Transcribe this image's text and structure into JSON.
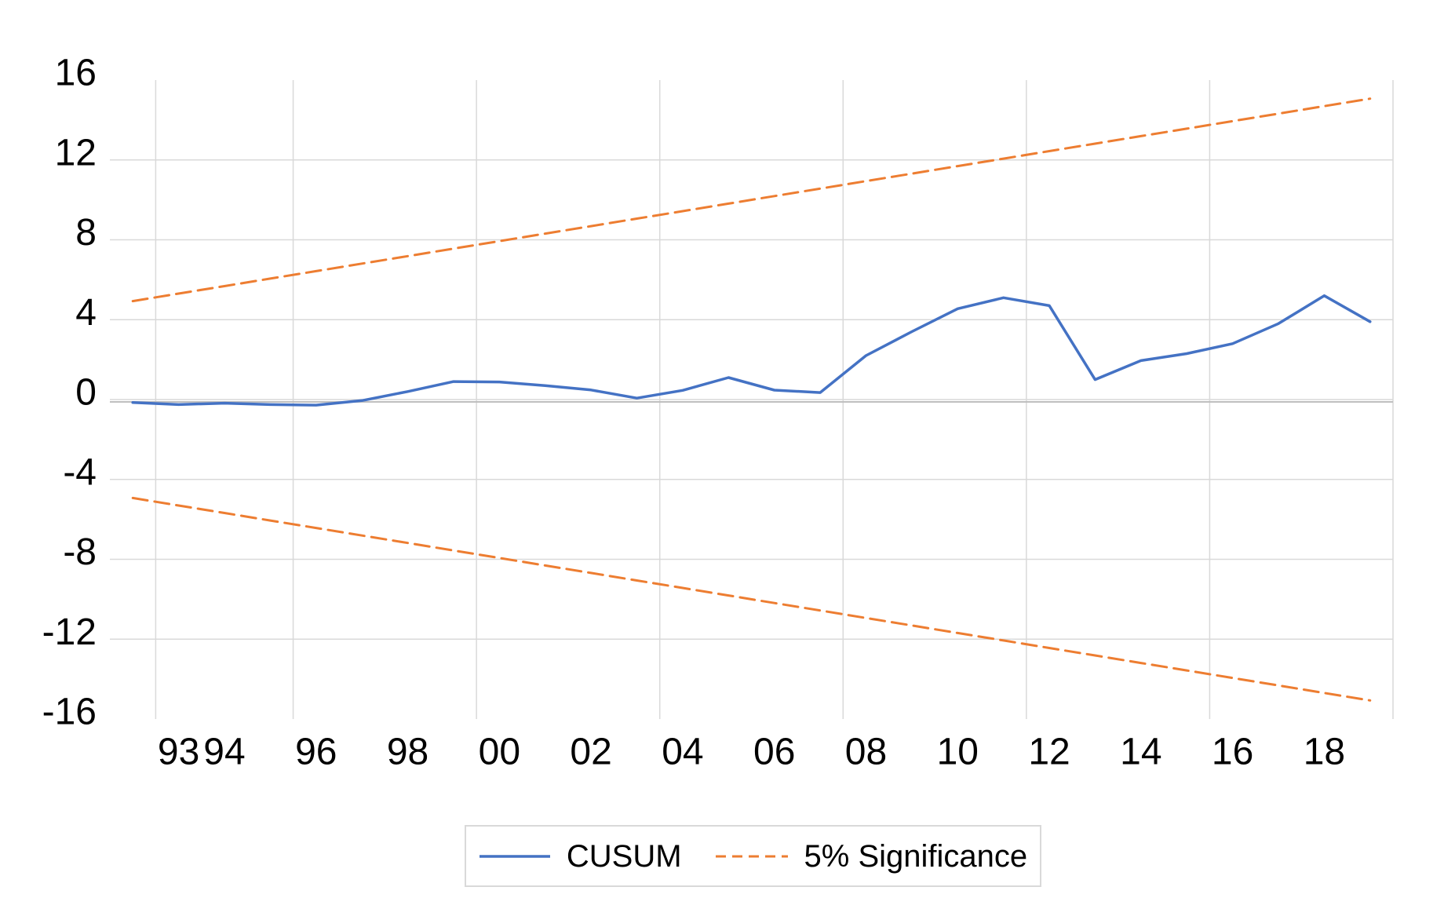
{
  "chart_data": {
    "type": "line",
    "title": "",
    "xlabel": "",
    "ylabel": "",
    "ylim": [
      -16,
      16
    ],
    "grid": true,
    "legend_position": "bottom",
    "x": [
      1992,
      1993,
      1994,
      1995,
      1996,
      1997,
      1998,
      1999,
      2000,
      2001,
      2002,
      2003,
      2004,
      2005,
      2006,
      2007,
      2008,
      2009,
      2010,
      2011,
      2012,
      2013,
      2014,
      2015,
      2016,
      2017,
      2018,
      2019
    ],
    "series": [
      {
        "name": "CUSUM",
        "color": "#4472C4",
        "style": "solid",
        "values": [
          -0.15,
          -0.25,
          -0.18,
          -0.25,
          -0.28,
          -0.05,
          0.4,
          0.9,
          0.88,
          0.7,
          0.48,
          0.07,
          0.46,
          1.1,
          0.47,
          0.35,
          2.2,
          3.4,
          4.55,
          5.1,
          4.7,
          1.0,
          1.95,
          2.3,
          2.8,
          3.8,
          5.2,
          3.9
        ]
      },
      {
        "name": "5% Significance (upper bound)",
        "color": "#ED7D31",
        "style": "dashed",
        "linear": {
          "start": 4.93,
          "end": 15.07
        }
      },
      {
        "name": "5% Significance (lower bound)",
        "color": "#ED7D31",
        "style": "dashed",
        "linear": {
          "start": -4.93,
          "end": -15.07
        }
      }
    ],
    "y_axis": {
      "ticks": [
        16,
        12,
        8,
        4,
        0,
        -4,
        -8,
        -12,
        -16
      ],
      "gridline_ticks": [
        12,
        8,
        4,
        0,
        -4,
        -8,
        -12
      ]
    },
    "x_axis": {
      "tick_labels": [
        {
          "year": 1993,
          "label": "93"
        },
        {
          "year": 1994,
          "label": "94"
        },
        {
          "year": 1996,
          "label": "96"
        },
        {
          "year": 1998,
          "label": "98"
        },
        {
          "year": 2000,
          "label": "00"
        },
        {
          "year": 2002,
          "label": "02"
        },
        {
          "year": 2004,
          "label": "04"
        },
        {
          "year": 2006,
          "label": "06"
        },
        {
          "year": 2008,
          "label": "08"
        },
        {
          "year": 2010,
          "label": "10"
        },
        {
          "year": 2012,
          "label": "12"
        },
        {
          "year": 2014,
          "label": "14"
        },
        {
          "year": 2016,
          "label": "16"
        },
        {
          "year": 2018,
          "label": "18"
        }
      ],
      "gridline_boundary_indices": [
        1,
        4,
        8,
        12,
        16,
        20,
        24,
        28
      ]
    }
  },
  "legend": {
    "cusum_label": "CUSUM",
    "significance_label": "5% Significance"
  },
  "colors": {
    "background": "#FFFFFF",
    "gridline": "#D9D9D9",
    "axis_line": "#BFBFBF",
    "text": "#000000",
    "cusum": "#4472C4",
    "significance": "#ED7D31",
    "legend_border": "#D9D9D9"
  }
}
